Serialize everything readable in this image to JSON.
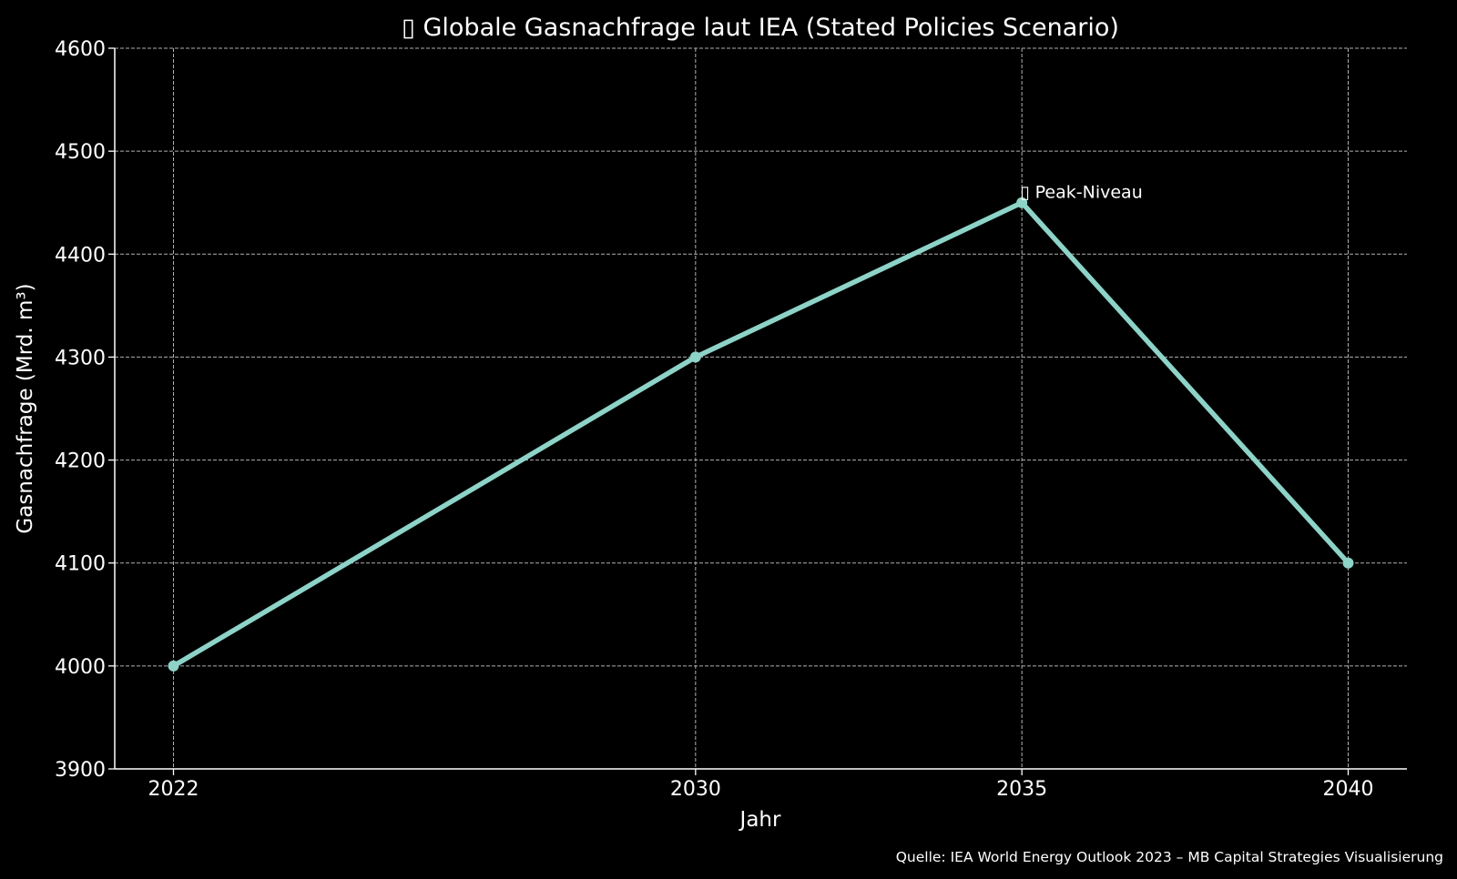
{
  "chart_data": {
    "type": "line",
    "title": "▯ Globale Gasnachfrage laut IEA (Stated Policies Scenario)",
    "xlabel": "Jahr",
    "ylabel": "Gasnachfrage (Mrd. m³)",
    "x": [
      2022,
      2030,
      2035,
      2040
    ],
    "series": [
      {
        "values": [
          4000,
          4300,
          4450,
          4100
        ]
      }
    ],
    "xticks": [
      2022,
      2030,
      2035,
      2040
    ],
    "yticks": [
      3900,
      4000,
      4100,
      4200,
      4300,
      4400,
      4500,
      4600
    ],
    "xlim": [
      2021.1,
      2040.9
    ],
    "ylim": [
      3900,
      4600
    ],
    "grid": true,
    "annotation": {
      "text": "▯ Peak-Niveau",
      "x": 2035,
      "y": 4450
    },
    "source": "Quelle: IEA World Energy Outlook 2023 – MB Capital Strategies Visualisierung",
    "colors": {
      "background": "#000000",
      "line": "#8dd3c7",
      "grid": "#b0b0b0",
      "text": "#ffffff"
    }
  }
}
